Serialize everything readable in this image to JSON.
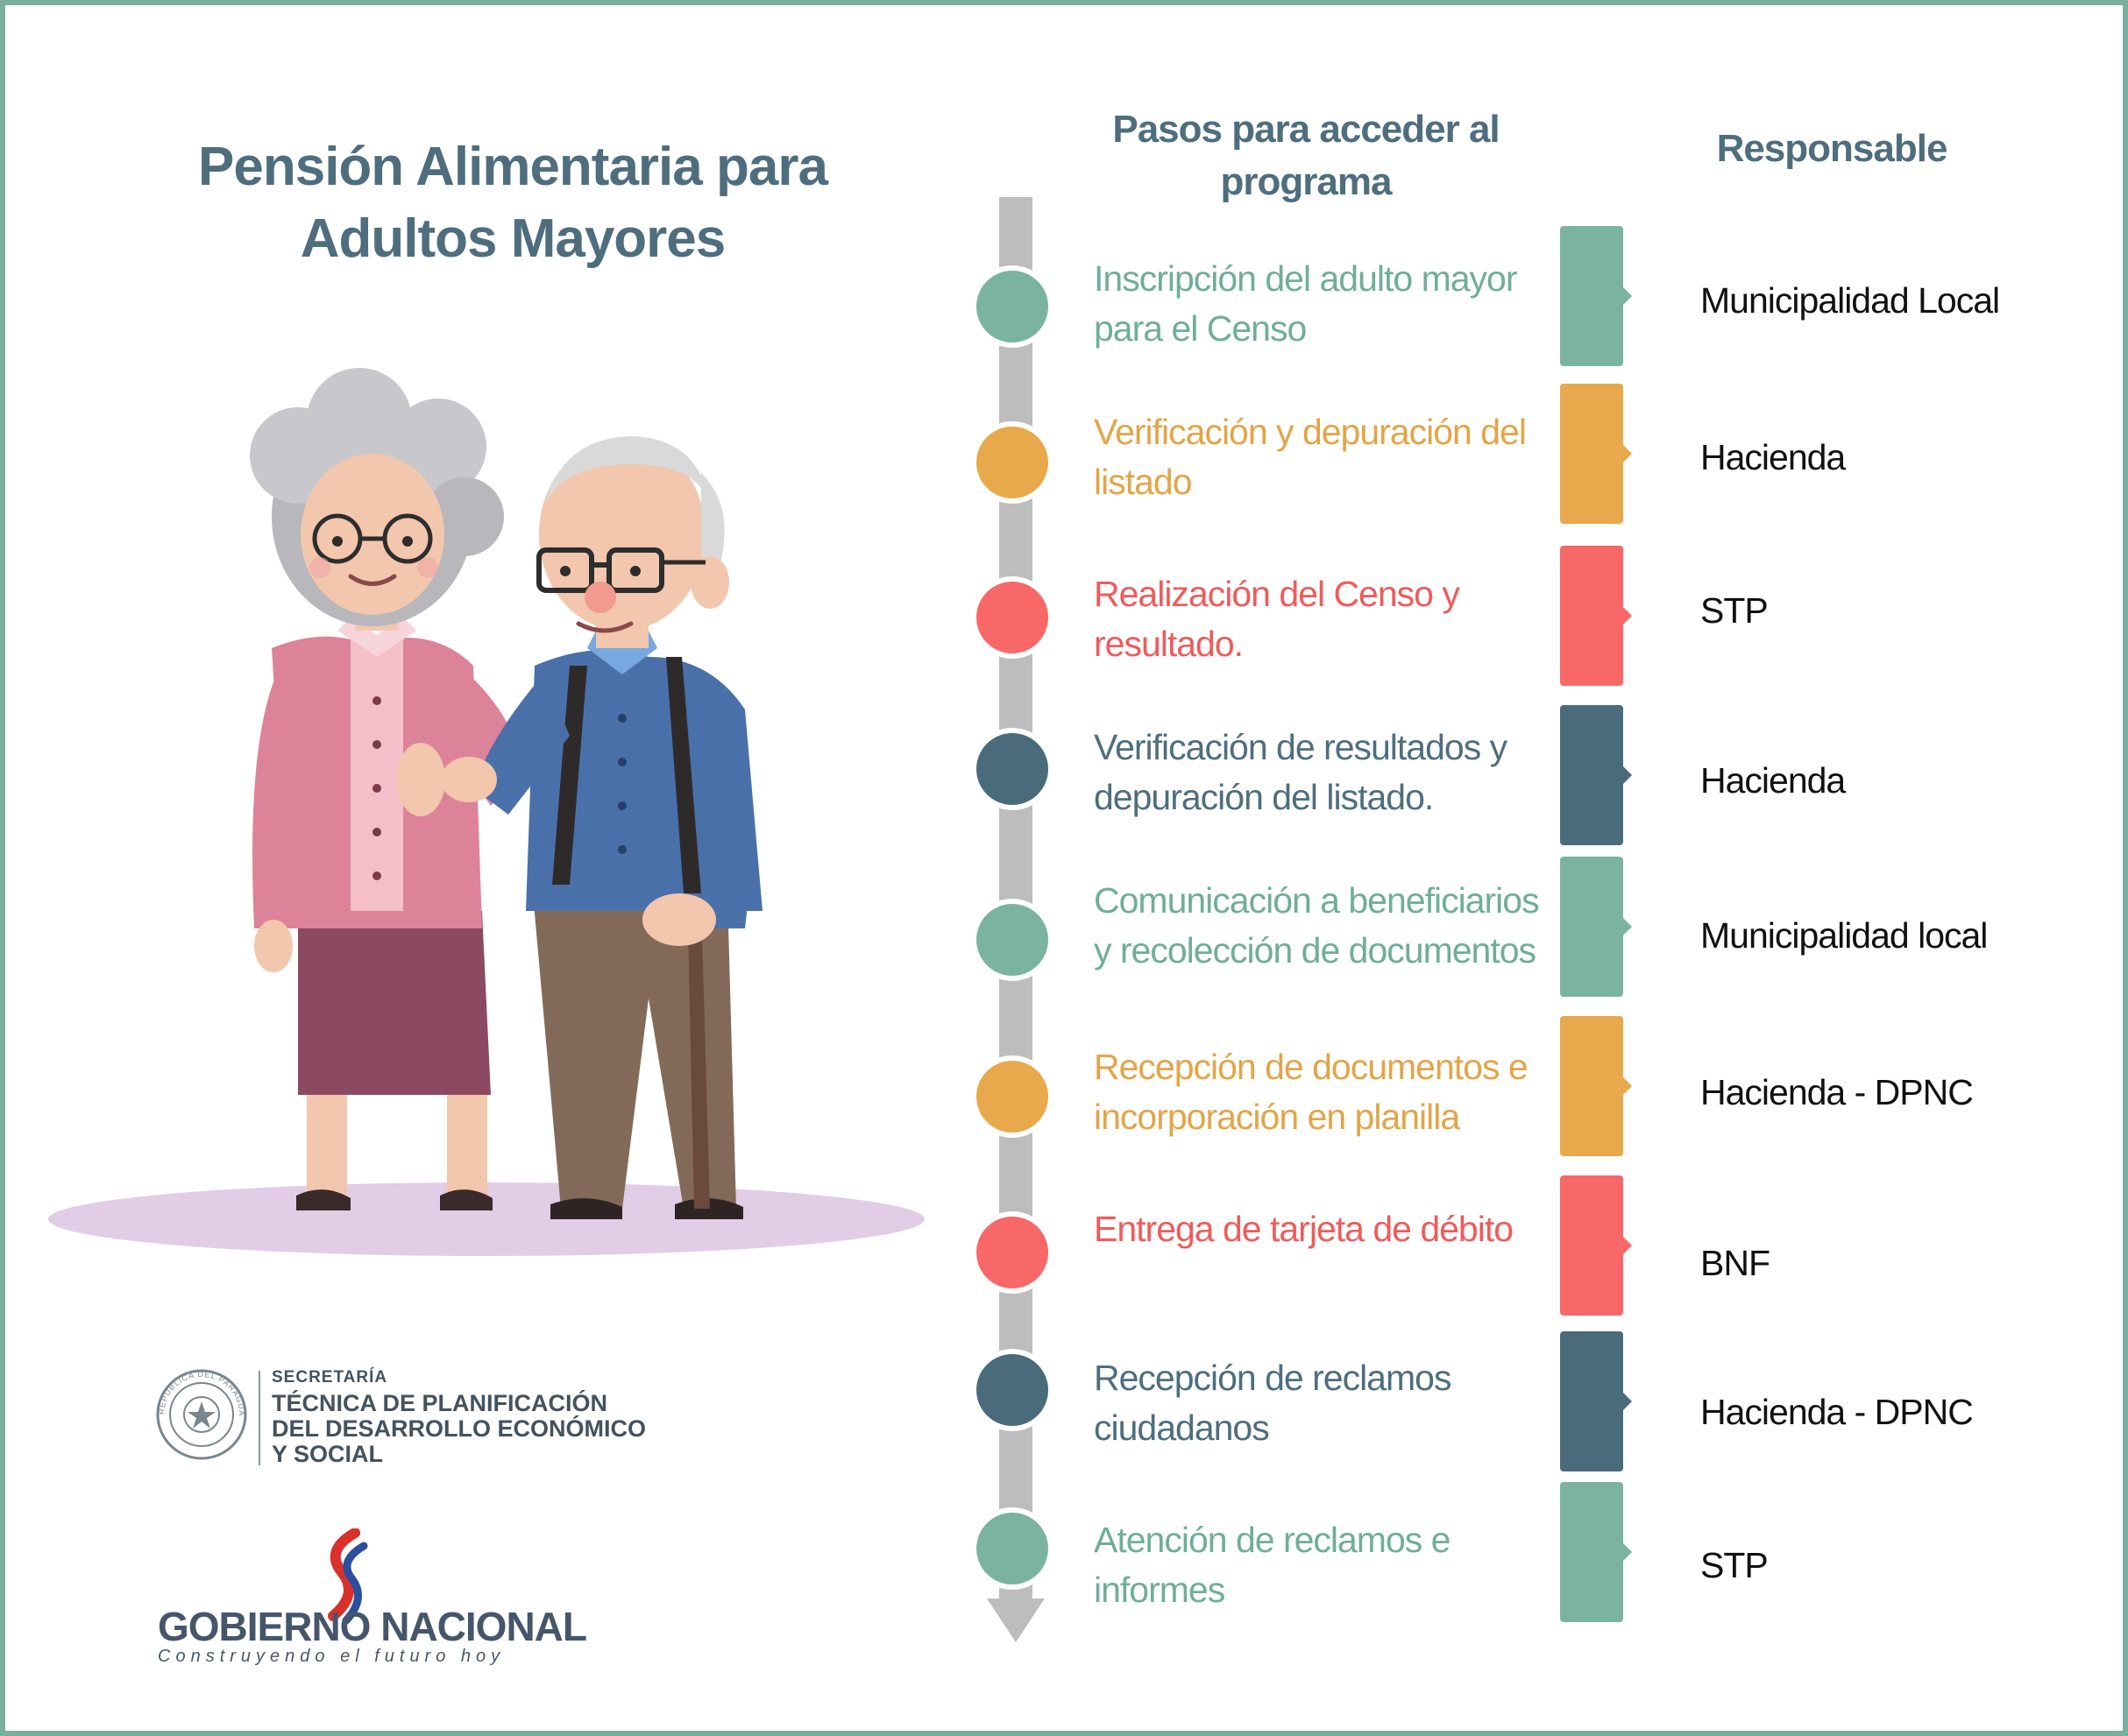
{
  "title": "Pensión Alimentaria para Adultos Mayores",
  "headers": {
    "steps": "Pasos para acceder al programa",
    "responsible": "Responsable"
  },
  "colors": {
    "green": "#7ab4a0",
    "orange": "#e8a94c",
    "red": "#f86868",
    "navy": "#4a6b7c",
    "green_text": "#6fae98",
    "orange_text": "#e3a548",
    "red_text": "#ef5b5b",
    "navy_text": "#4e6e7e",
    "timeline_gray": "#bdbdbd"
  },
  "steps": [
    {
      "text": "Inscripción del adulto mayor para el Censo",
      "responsible": "Municipalidad Local",
      "color": "green"
    },
    {
      "text": "Verificación y depuración del listado",
      "responsible": "Hacienda",
      "color": "orange"
    },
    {
      "text": "Realización del Censo y resultado.",
      "responsible": "STP",
      "color": "red"
    },
    {
      "text": "Verificación de resultados y depuración del listado.",
      "responsible": "Hacienda",
      "color": "navy"
    },
    {
      "text": "Comunicación a beneficiarios y recolección de documentos",
      "responsible": "Municipalidad local",
      "color": "green"
    },
    {
      "text": "Recepción de documentos e incorporación en planilla",
      "responsible": "Hacienda - DPNC",
      "color": "orange"
    },
    {
      "text": "Entrega de tarjeta de débito",
      "responsible": "BNF",
      "color": "red"
    },
    {
      "text": "Recepción de reclamos ciudadanos",
      "responsible": "Hacienda - DPNC",
      "color": "navy"
    },
    {
      "text": "Atención de reclamos e informes",
      "responsible": "STP",
      "color": "green"
    }
  ],
  "footer": {
    "secretaria_small": "SECRETARÍA",
    "secretaria_line1": "TÉCNICA DE PLANIFICACIÓN",
    "secretaria_line2": "DEL DESARROLLO ECONÓMICO",
    "secretaria_line3": "Y SOCIAL",
    "seal_ring_text": "REPÚBLICA DEL PARAGUAY",
    "gobierno": "GOBIERNO NACIONAL",
    "slogan": "Construyendo el futuro hoy"
  }
}
